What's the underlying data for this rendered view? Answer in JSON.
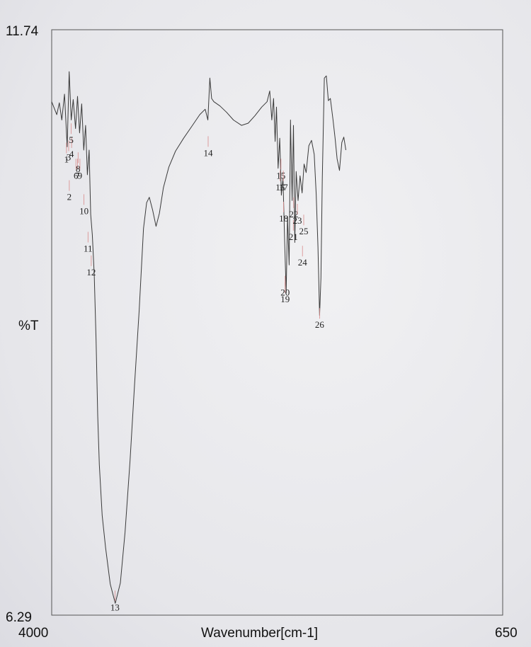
{
  "chart_data": {
    "type": "line",
    "ylabel": "%T",
    "xlabel": "Wavenumber[cm-1]",
    "ylim": [
      6.29,
      11.74
    ],
    "xlim": [
      4000,
      650
    ],
    "x_tick_labels": [
      "4000",
      "650"
    ],
    "y_tick_labels": [
      "11.74",
      "6.29"
    ],
    "series_points": [
      [
        4000,
        11.07
      ],
      [
        3962,
        10.95
      ],
      [
        3943,
        11.06
      ],
      [
        3925,
        10.9
      ],
      [
        3905,
        11.14
      ],
      [
        3885,
        10.65
      ],
      [
        3870,
        11.35
      ],
      [
        3855,
        10.9
      ],
      [
        3840,
        11.09
      ],
      [
        3823,
        10.82
      ],
      [
        3808,
        11.12
      ],
      [
        3793,
        10.78
      ],
      [
        3777,
        11.05
      ],
      [
        3762,
        10.62
      ],
      [
        3748,
        10.85
      ],
      [
        3735,
        10.39
      ],
      [
        3722,
        10.62
      ],
      [
        3710,
        10.02
      ],
      [
        3698,
        9.83
      ],
      [
        3684,
        9.46
      ],
      [
        3670,
        8.85
      ],
      [
        3658,
        8.15
      ],
      [
        3646,
        7.69
      ],
      [
        3625,
        7.22
      ],
      [
        3600,
        6.92
      ],
      [
        3565,
        6.58
      ],
      [
        3528,
        6.4
      ],
      [
        3490,
        6.59
      ],
      [
        3455,
        7.06
      ],
      [
        3418,
        7.73
      ],
      [
        3385,
        8.42
      ],
      [
        3350,
        9.13
      ],
      [
        3318,
        9.89
      ],
      [
        3295,
        10.13
      ],
      [
        3275,
        10.18
      ],
      [
        3250,
        10.06
      ],
      [
        3225,
        9.91
      ],
      [
        3200,
        10.03
      ],
      [
        3170,
        10.27
      ],
      [
        3130,
        10.46
      ],
      [
        3080,
        10.61
      ],
      [
        3020,
        10.73
      ],
      [
        2960,
        10.84
      ],
      [
        2900,
        10.95
      ],
      [
        2860,
        11.0
      ],
      [
        2840,
        10.9
      ],
      [
        2825,
        11.29
      ],
      [
        2812,
        11.1
      ],
      [
        2795,
        11.07
      ],
      [
        2750,
        11.03
      ],
      [
        2700,
        10.97
      ],
      [
        2650,
        10.9
      ],
      [
        2590,
        10.85
      ],
      [
        2540,
        10.87
      ],
      [
        2490,
        10.94
      ],
      [
        2440,
        11.02
      ],
      [
        2400,
        11.07
      ],
      [
        2380,
        11.17
      ],
      [
        2365,
        10.9
      ],
      [
        2352,
        11.1
      ],
      [
        2340,
        10.7
      ],
      [
        2330,
        11.02
      ],
      [
        2318,
        10.45
      ],
      [
        2306,
        10.73
      ],
      [
        2294,
        10.2
      ],
      [
        2282,
        10.36
      ],
      [
        2270,
        9.78
      ],
      [
        2258,
        9.29
      ],
      [
        2248,
        10.0
      ],
      [
        2236,
        9.55
      ],
      [
        2226,
        10.9
      ],
      [
        2214,
        10.15
      ],
      [
        2204,
        10.85
      ],
      [
        2194,
        9.76
      ],
      [
        2184,
        10.42
      ],
      [
        2170,
        10.15
      ],
      [
        2155,
        10.38
      ],
      [
        2140,
        10.22
      ],
      [
        2125,
        10.49
      ],
      [
        2110,
        10.41
      ],
      [
        2090,
        10.66
      ],
      [
        2070,
        10.71
      ],
      [
        2050,
        10.58
      ],
      [
        2035,
        10.21
      ],
      [
        2022,
        9.72
      ],
      [
        2010,
        9.08
      ],
      [
        2000,
        9.43
      ],
      [
        1990,
        10.35
      ],
      [
        1975,
        11.29
      ],
      [
        1960,
        11.31
      ],
      [
        1945,
        11.08
      ],
      [
        1930,
        11.1
      ],
      [
        1910,
        10.9
      ],
      [
        1895,
        10.73
      ],
      [
        1880,
        10.54
      ],
      [
        1862,
        10.43
      ],
      [
        1845,
        10.69
      ],
      [
        1830,
        10.74
      ],
      [
        1815,
        10.62
      ]
    ],
    "peak_labels": [
      {
        "text": "1",
        "x": 3890,
        "y": 10.57
      },
      {
        "text": "2",
        "x": 3869,
        "y": 10.22
      },
      {
        "text": "3",
        "x": 3874,
        "y": 10.59
      },
      {
        "text": "4",
        "x": 3852,
        "y": 10.62
      },
      {
        "text": "5",
        "x": 3855,
        "y": 10.75
      },
      {
        "text": "6",
        "x": 3820,
        "y": 10.42
      },
      {
        "text": "7",
        "x": 3808,
        "y": 10.42
      },
      {
        "text": "8",
        "x": 3804,
        "y": 10.48
      },
      {
        "text": "9",
        "x": 3790,
        "y": 10.42
      },
      {
        "text": "10",
        "x": 3760,
        "y": 10.09
      },
      {
        "text": "11",
        "x": 3730,
        "y": 9.74
      },
      {
        "text": "12",
        "x": 3706,
        "y": 9.52
      },
      {
        "text": "13",
        "x": 3530,
        "y": 6.4
      },
      {
        "text": "14",
        "x": 2838,
        "y": 10.63
      },
      {
        "text": "15",
        "x": 2297,
        "y": 10.42
      },
      {
        "text": "16",
        "x": 2303,
        "y": 10.31
      },
      {
        "text": "17",
        "x": 2280,
        "y": 10.31
      },
      {
        "text": "18",
        "x": 2277,
        "y": 10.02
      },
      {
        "text": "19",
        "x": 2266,
        "y": 9.27
      },
      {
        "text": "20",
        "x": 2266,
        "y": 9.33
      },
      {
        "text": "21",
        "x": 2205,
        "y": 9.85
      },
      {
        "text": "22",
        "x": 2202,
        "y": 10.06
      },
      {
        "text": "23",
        "x": 2175,
        "y": 10.0
      },
      {
        "text": "24",
        "x": 2137,
        "y": 9.61
      },
      {
        "text": "25",
        "x": 2128,
        "y": 9.9
      },
      {
        "text": "26",
        "x": 2010,
        "y": 9.03
      }
    ],
    "grid": false,
    "legend": "none"
  }
}
